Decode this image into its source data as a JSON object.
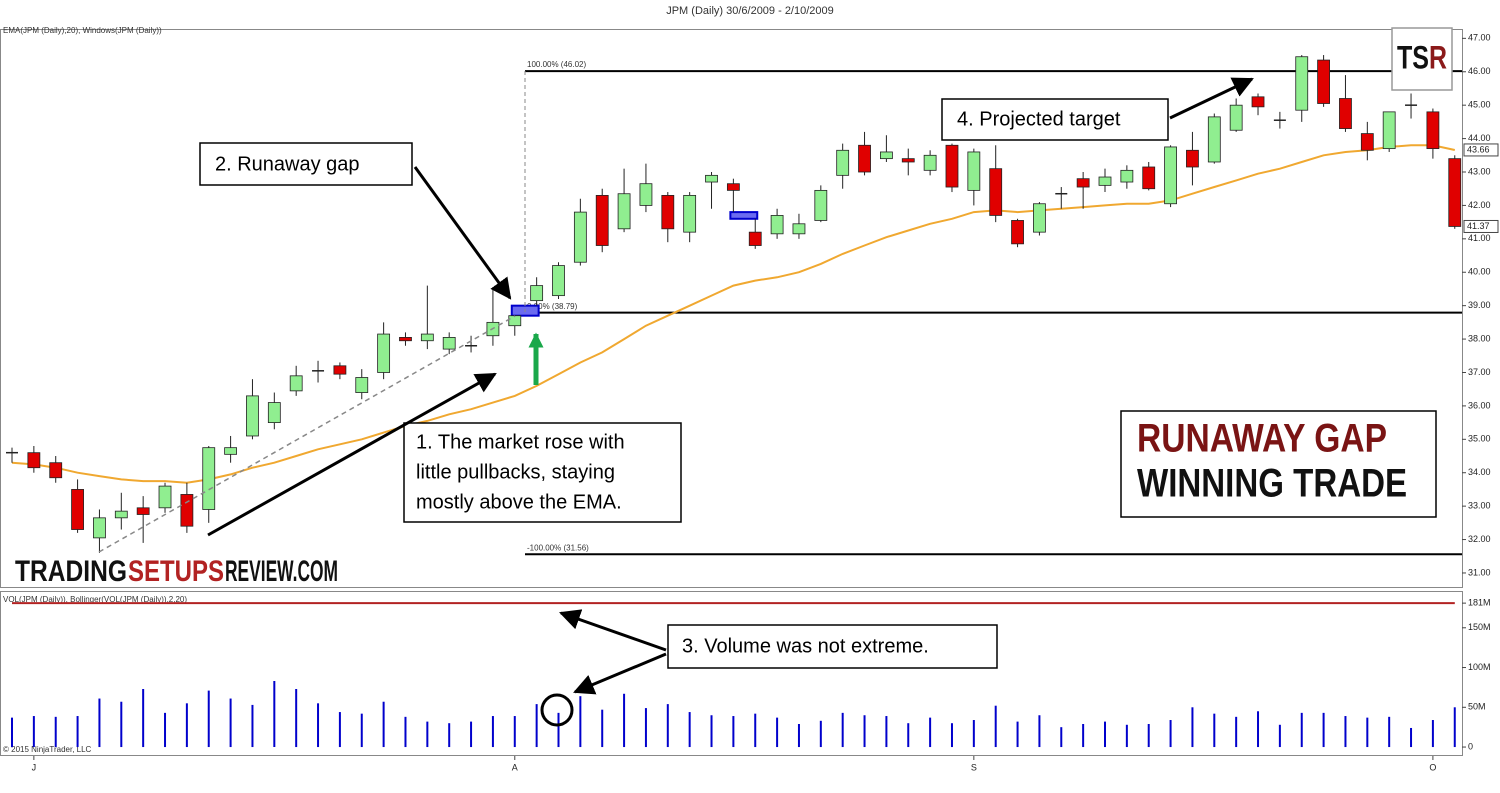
{
  "chart_data": [
    {
      "type": "candlestick",
      "title": "JPM (Daily)  30/6/2009 - 2/10/2009",
      "indicator_label": "EMA(JPM (Daily),20), Windows(JPM (Daily))",
      "copyright": "© 2015 NinjaTrader, LLC",
      "categories": [
        null,
        "J",
        null,
        null,
        null,
        null,
        null,
        null,
        null,
        null,
        null,
        null,
        null,
        null,
        null,
        null,
        null,
        null,
        null,
        null,
        null,
        null,
        null,
        "A",
        null,
        null,
        null,
        null,
        null,
        null,
        null,
        null,
        null,
        null,
        null,
        null,
        null,
        null,
        null,
        null,
        null,
        null,
        null,
        null,
        "S",
        null,
        null,
        null,
        null,
        null,
        null,
        null,
        null,
        null,
        null,
        null,
        null,
        null,
        null,
        null,
        null,
        null,
        null,
        null,
        null,
        "O",
        null
      ],
      "open": [
        34.6,
        34.6,
        34.3,
        33.5,
        32.05,
        32.65,
        32.95,
        32.95,
        33.35,
        32.9,
        34.55,
        35.1,
        35.5,
        36.45,
        37.05,
        37.2,
        36.4,
        37.0,
        38.05,
        37.95,
        37.7,
        37.8,
        38.1,
        38.4,
        39.15,
        39.3,
        40.3,
        42.3,
        41.3,
        42.0,
        42.3,
        41.2,
        42.7,
        42.65,
        41.2,
        41.15,
        41.15,
        41.55,
        42.9,
        43.8,
        43.4,
        43.4,
        43.05,
        43.8,
        42.45,
        43.1,
        41.55,
        41.2,
        42.35,
        42.8,
        42.6,
        42.7,
        43.15,
        42.05,
        43.65,
        43.3,
        44.25,
        45.25,
        44.55,
        44.85,
        46.35,
        45.2,
        44.15,
        43.7,
        45.0,
        44.8,
        43.4
      ],
      "high": [
        34.75,
        34.8,
        34.5,
        33.8,
        32.9,
        33.4,
        33.3,
        33.7,
        33.7,
        34.8,
        35.1,
        36.8,
        36.4,
        37.2,
        37.35,
        37.3,
        37.1,
        38.5,
        38.2,
        39.6,
        38.2,
        38.1,
        39.5,
        38.7,
        39.85,
        40.3,
        42.2,
        42.5,
        43.1,
        43.25,
        42.4,
        42.4,
        43.0,
        42.8,
        41.6,
        41.9,
        41.75,
        42.6,
        43.85,
        44.2,
        44.1,
        43.7,
        43.65,
        43.85,
        43.7,
        43.8,
        41.6,
        42.1,
        42.55,
        43.0,
        43.1,
        43.2,
        43.3,
        43.8,
        44.2,
        44.75,
        45.2,
        45.35,
        44.8,
        46.5,
        46.5,
        45.9,
        44.5,
        44.8,
        45.35,
        44.9,
        43.5
      ],
      "low": [
        34.3,
        34.0,
        33.7,
        32.2,
        31.6,
        32.3,
        31.9,
        32.8,
        32.2,
        32.5,
        34.3,
        35.0,
        35.3,
        36.3,
        36.7,
        36.8,
        36.2,
        36.8,
        37.8,
        37.7,
        37.55,
        37.6,
        37.8,
        38.1,
        39.0,
        39.2,
        40.2,
        40.6,
        41.2,
        41.8,
        40.9,
        40.9,
        41.9,
        41.8,
        40.7,
        41.0,
        41.0,
        41.5,
        42.5,
        42.9,
        43.3,
        42.9,
        42.9,
        42.4,
        42.0,
        41.5,
        40.75,
        41.1,
        41.9,
        41.9,
        42.4,
        42.5,
        42.45,
        41.95,
        42.6,
        43.25,
        44.2,
        44.7,
        44.3,
        44.5,
        44.95,
        44.2,
        43.35,
        43.6,
        44.6,
        43.4,
        41.3
      ],
      "close": [
        34.6,
        34.15,
        33.85,
        32.3,
        32.65,
        32.85,
        32.75,
        33.6,
        32.4,
        34.75,
        34.75,
        36.3,
        36.1,
        36.9,
        37.05,
        36.95,
        36.85,
        38.15,
        37.95,
        38.15,
        38.05,
        37.8,
        38.5,
        38.7,
        39.6,
        40.2,
        41.8,
        40.8,
        42.35,
        42.65,
        41.3,
        42.3,
        42.9,
        42.45,
        40.8,
        41.7,
        41.45,
        42.45,
        43.65,
        43.0,
        43.6,
        43.3,
        43.5,
        42.55,
        43.6,
        41.7,
        40.85,
        42.05,
        42.35,
        42.55,
        42.85,
        43.05,
        42.5,
        43.75,
        43.15,
        44.65,
        45.0,
        44.95,
        44.55,
        46.45,
        45.05,
        44.3,
        43.65,
        44.8,
        45.0,
        43.7,
        41.37
      ],
      "up_color": "#90ee90",
      "down_color": "#e00000",
      "gap_color": "#6b6bf0",
      "ema": {
        "color": "#f0a830",
        "values": [
          34.3,
          34.25,
          34.15,
          34.0,
          33.9,
          33.8,
          33.75,
          33.75,
          33.7,
          33.8,
          33.95,
          34.15,
          34.3,
          34.5,
          34.7,
          34.85,
          35.0,
          35.2,
          35.4,
          35.55,
          35.75,
          35.9,
          36.1,
          36.3,
          36.6,
          36.95,
          37.3,
          37.6,
          38.0,
          38.4,
          38.7,
          39.0,
          39.3,
          39.6,
          39.75,
          39.85,
          40.0,
          40.25,
          40.55,
          40.8,
          41.05,
          41.25,
          41.45,
          41.6,
          41.8,
          41.85,
          41.8,
          41.85,
          41.9,
          41.95,
          42.0,
          42.05,
          42.05,
          42.15,
          42.35,
          42.55,
          42.75,
          42.95,
          43.1,
          43.3,
          43.5,
          43.6,
          43.65,
          43.75,
          43.8,
          43.8,
          43.66
        ]
      },
      "levels": [
        {
          "value": 46.02,
          "label": "100.00% (46.02)"
        },
        {
          "value": 38.79,
          "label": "0.00% (38.79)"
        },
        {
          "value": 31.56,
          "label": "-100.00% (31.56)"
        }
      ],
      "ylim": [
        30.55,
        47.25
      ],
      "yticks": [
        {
          "value": 31,
          "label": "31.00"
        },
        {
          "value": 32,
          "label": "32.00"
        },
        {
          "value": 33,
          "label": "33.00"
        },
        {
          "value": 34,
          "label": "34.00"
        },
        {
          "value": 35,
          "label": "35.00"
        },
        {
          "value": 36,
          "label": "36.00"
        },
        {
          "value": 37,
          "label": "37.00"
        },
        {
          "value": 38,
          "label": "38.00"
        },
        {
          "value": 39,
          "label": "39.00"
        },
        {
          "value": 40,
          "label": "40.00"
        },
        {
          "value": 41,
          "label": "41.00"
        },
        {
          "value": 42,
          "label": "42.00"
        },
        {
          "value": 43,
          "label": "43.00"
        },
        {
          "value": 44,
          "label": "44.00"
        },
        {
          "value": 45,
          "label": "45.00"
        },
        {
          "value": 46,
          "label": "46.00"
        },
        {
          "value": 47,
          "label": "47.00"
        }
      ],
      "annotations": {
        "runaway_gap": "2. Runaway gap",
        "market_rose": [
          "1. The market rose with",
          "little pullbacks, staying",
          "mostly above the EMA."
        ],
        "target": "4. Projected target",
        "volume_note": "3. Volume was not extreme.",
        "headline": [
          "RUNAWAY GAP",
          "WINNING TRADE"
        ],
        "logo": [
          "TS",
          "R"
        ],
        "site": [
          "TRADING",
          "SETUPS",
          "REVIEW.COM"
        ]
      }
    },
    {
      "type": "volume",
      "label": "VOL(JPM (Daily)), Bollinger(VOL(JPM (Daily)),2,20)",
      "color": "#0000cc",
      "values": [
        37,
        39,
        38,
        39,
        61,
        57,
        73,
        43,
        55,
        71,
        61,
        53,
        83,
        73,
        55,
        44,
        42,
        57,
        38,
        32,
        30,
        32,
        39,
        39,
        54,
        43,
        64,
        47,
        67,
        49,
        54,
        44,
        40,
        39,
        42,
        37,
        29,
        33,
        43,
        40,
        39,
        30,
        37,
        30,
        34,
        52,
        32,
        40,
        25,
        29,
        32,
        28,
        29,
        34,
        50,
        42,
        38,
        45,
        28,
        43,
        43,
        39,
        37,
        38,
        24,
        34,
        50
      ],
      "bollinger": {
        "color": "#b22222",
        "values": [
          181,
          181,
          181,
          181,
          181,
          181,
          181,
          181,
          181,
          181,
          181,
          181,
          181,
          181,
          181,
          181,
          181,
          181,
          181,
          181,
          181,
          181,
          181,
          181,
          181,
          181,
          181,
          181,
          181,
          181,
          181,
          181,
          181,
          181,
          181,
          181,
          181,
          181,
          181,
          181,
          181,
          181,
          181,
          181,
          181,
          181,
          181,
          181,
          181,
          181,
          181,
          181,
          181,
          181,
          181,
          181,
          181,
          181,
          181,
          181,
          181,
          181,
          181,
          181,
          181,
          181,
          181
        ]
      },
      "ylim": [
        -10,
        195
      ],
      "yticks": [
        0,
        {
          "value": 50,
          "label": "50M"
        },
        {
          "value": 100,
          "label": "100M"
        },
        {
          "value": 150,
          "label": "150M"
        },
        {
          "value": 181,
          "label": "181M"
        }
      ]
    }
  ]
}
